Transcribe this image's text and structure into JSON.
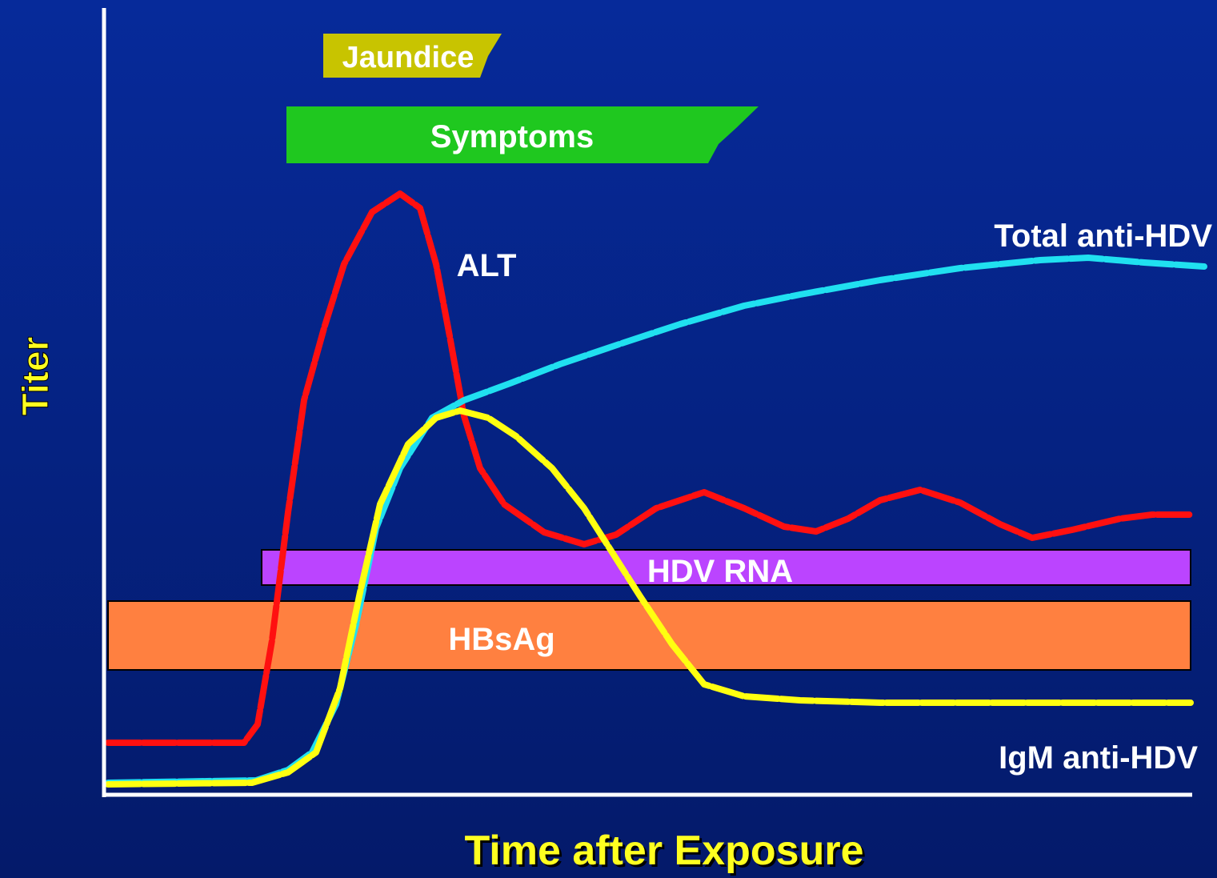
{
  "bars": {
    "jaundice": "Jaundice",
    "symptoms": "Symptoms",
    "hdv_rna": "HDV RNA",
    "hbsag": "HBsAg"
  },
  "curves": {
    "alt": "ALT",
    "total_anti_hdv": "Total anti-HDV",
    "igm_anti_hdv": "IgM anti-HDV"
  },
  "axes": {
    "y_label": "Titer",
    "x_label": "Time after Exposure"
  }
}
